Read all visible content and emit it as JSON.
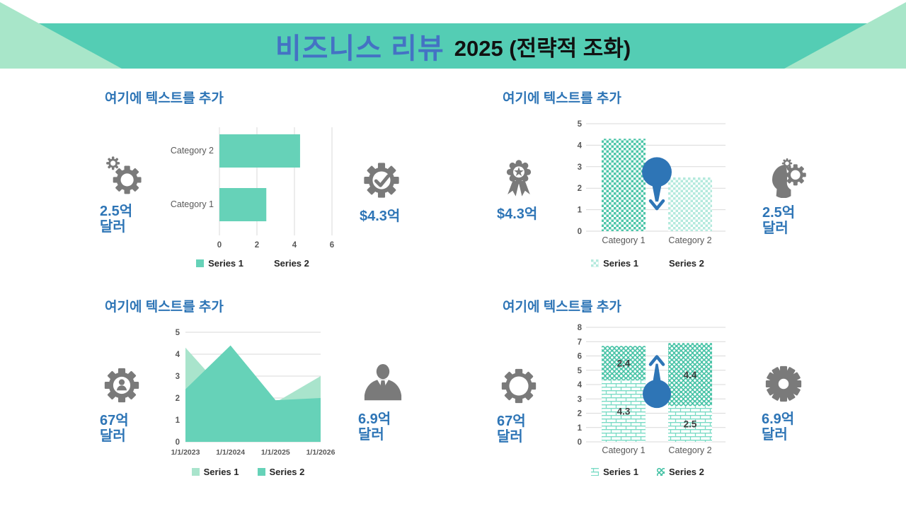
{
  "header": {
    "title_main": "비즈니스 리뷰",
    "title_suffix": "2025 (전략적 조화)"
  },
  "colors": {
    "banner_teal": "#54CDB4",
    "banner_mint": "#A8E6C9",
    "series_teal": "#66D2B8",
    "series_light": "#A9E4CC",
    "pattern_teal": "#4EC6A9",
    "pattern_light": "#B4EADD",
    "brick": "#79DBC5",
    "circles": "#45C2A5",
    "stat_blue": "#2E75B6",
    "title_blue": "#4472C4",
    "icon_gray": "#7A7A7A",
    "grid": "#D9D9D9",
    "axis_text": "#595959",
    "label_dark": "#3F3F3F",
    "marker_blue": "#2E75B6"
  },
  "quadrants": {
    "top_left": {
      "heading": "여기에 텍스트를 추가",
      "left_stat": {
        "icon": "gears-icon",
        "line1": "2.5억",
        "line2": "달러"
      },
      "right_stat": {
        "icon": "gear-check-icon",
        "line1": "$4.3억",
        "line2": ""
      },
      "legend": [
        {
          "label": "Series 1",
          "swatch": "solid_teal"
        },
        {
          "label": "Series 2",
          "swatch": "none"
        }
      ]
    },
    "top_right": {
      "heading": "여기에 텍스트를 추가",
      "left_stat": {
        "icon": "award-medal-icon",
        "line1": "$4.3억",
        "line2": ""
      },
      "right_stat": {
        "icon": "head-gears-icon",
        "line1": "2.5억",
        "line2": "달러"
      },
      "legend": [
        {
          "label": "Series 1",
          "swatch": "checker_light"
        },
        {
          "label": "Series 2",
          "swatch": "none"
        }
      ]
    },
    "bottom_left": {
      "heading": "여기에 텍스트를 추가",
      "left_stat": {
        "icon": "gear-person-icon",
        "line1": "67억",
        "line2": "달러"
      },
      "right_stat": {
        "icon": "businessman-icon",
        "line1": "6.9억",
        "line2": "달러"
      },
      "legend": [
        {
          "label": "Series 1",
          "swatch": "solid_light"
        },
        {
          "label": "Series 2",
          "swatch": "solid_teal"
        }
      ]
    },
    "bottom_right": {
      "heading": "여기에 텍스트를 추가",
      "left_stat": {
        "icon": "gear-ring-icon",
        "line1": "67억",
        "line2": "달러"
      },
      "right_stat": {
        "icon": "solid-gear-icon",
        "line1": "6.9억",
        "line2": "달러"
      },
      "legend": [
        {
          "label": "Series 1",
          "swatch": "brick"
        },
        {
          "label": "Series 2",
          "swatch": "circles"
        }
      ]
    }
  },
  "chart_data": [
    {
      "id": "top_left",
      "type": "bar",
      "orientation": "horizontal",
      "categories": [
        "Category 1",
        "Category 2"
      ],
      "series": [
        {
          "name": "Series 1",
          "values": [
            2.5,
            4.3
          ],
          "style": "solid_teal"
        },
        {
          "name": "Series 2",
          "values": []
        }
      ],
      "xlim": [
        0,
        6
      ],
      "xticks": [
        0,
        2,
        4,
        6
      ],
      "grid": "vertical",
      "legend_position": "bottom"
    },
    {
      "id": "top_right",
      "type": "bar",
      "orientation": "vertical",
      "categories": [
        "Category 1",
        "Category 2"
      ],
      "series": [
        {
          "name": "Series 1",
          "values": [
            4.3,
            2.5
          ],
          "point_styles": [
            "checker",
            "checker_light"
          ]
        },
        {
          "name": "Series 2",
          "values": []
        }
      ],
      "ylim": [
        0,
        5
      ],
      "yticks": [
        0,
        1,
        2,
        3,
        4,
        5
      ],
      "marker": {
        "shape": "balloon-arrow-down",
        "value": 2.75,
        "arrow_to": 1.05
      },
      "legend_position": "bottom"
    },
    {
      "id": "bottom_left",
      "type": "area",
      "x": [
        "1/1/2023",
        "1/1/2024",
        "1/1/2025",
        "1/1/2026"
      ],
      "series": [
        {
          "name": "Series 1",
          "values": [
            4.3,
            2.0,
            1.8,
            3.0
          ],
          "style": "solid_light"
        },
        {
          "name": "Series 2",
          "values": [
            2.4,
            4.4,
            1.9,
            2.0
          ],
          "style": "solid_teal"
        }
      ],
      "ylim": [
        0,
        5
      ],
      "yticks": [
        0,
        1,
        2,
        3,
        4,
        5
      ],
      "legend_position": "bottom"
    },
    {
      "id": "bottom_right",
      "type": "bar",
      "orientation": "vertical",
      "stacked": true,
      "categories": [
        "Category 1",
        "Category 2"
      ],
      "series": [
        {
          "name": "Series 1",
          "values": [
            4.3,
            2.5
          ],
          "style": "brick"
        },
        {
          "name": "Series 2",
          "values": [
            2.4,
            4.4
          ],
          "style": "circles"
        }
      ],
      "ylim": [
        0,
        8
      ],
      "yticks": [
        0,
        1,
        2,
        3,
        4,
        5,
        6,
        7,
        8
      ],
      "data_labels": true,
      "marker": {
        "shape": "balloon-arrow-up",
        "value": 3.35,
        "arrow_to": 5.95
      },
      "legend_position": "bottom"
    }
  ]
}
